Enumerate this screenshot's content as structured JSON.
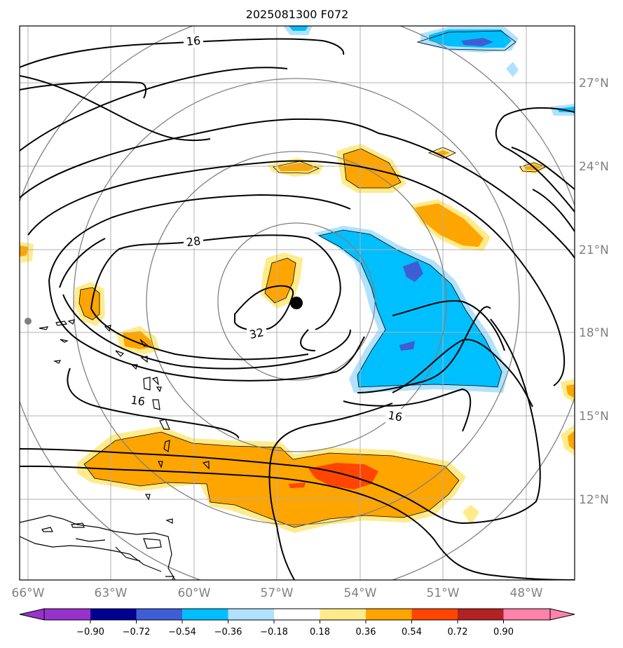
{
  "title": "2025081300 F072",
  "map": {
    "lon_ticks": [
      "66°W",
      "63°W",
      "60°W",
      "57°W",
      "54°W",
      "51°W",
      "48°W"
    ],
    "lat_ticks": [
      "27°N",
      "24°N",
      "21°N",
      "18°N",
      "15°N",
      "12°N"
    ],
    "contour_labels": [
      "16",
      "28",
      "32",
      "16",
      "16"
    ],
    "storm_center": {
      "lon": -56.3,
      "lat": 18.9
    },
    "range_rings": 4,
    "colors": {
      "contour": "#000000",
      "grid": "#b0b0b0",
      "ring": "#808080",
      "tick_label": "#808080"
    }
  },
  "colorbar": {
    "ticks": [
      "−0.90",
      "−0.72",
      "−0.54",
      "−0.36",
      "−0.18",
      "0.18",
      "0.36",
      "0.54",
      "0.72",
      "0.90"
    ],
    "colors": [
      "#9932cc",
      "#000090",
      "#3e5ed6",
      "#00bfff",
      "#b0e2ff",
      "#ffffff",
      "#ffeb8a",
      "#ffa500",
      "#ff4500",
      "#b22222",
      "#ff82ab"
    ]
  }
}
